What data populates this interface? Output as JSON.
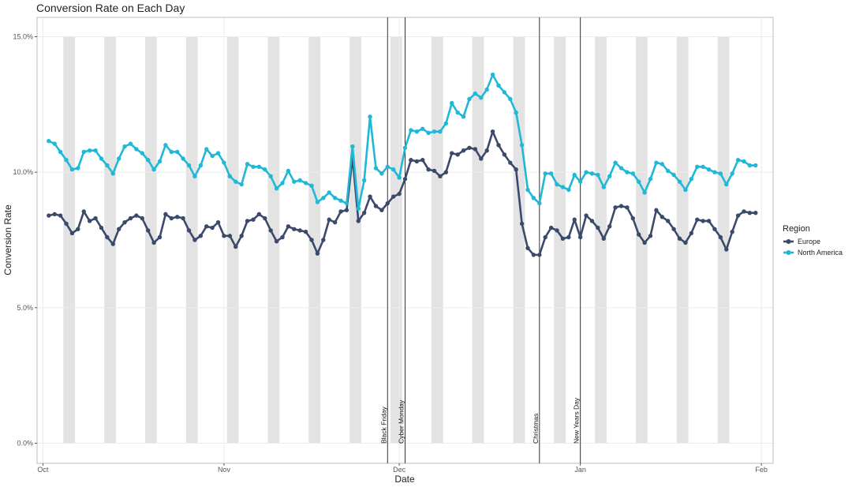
{
  "chart_data": {
    "type": "line",
    "title": "Conversion Rate on Each Day",
    "xlabel": "Date",
    "ylabel": "Conversion Rate",
    "x_start": "2019-10-02",
    "x_range": [
      "2019-09-30",
      "2020-02-03"
    ],
    "ylim": [
      0,
      15.5
    ],
    "y_ticks": [
      0,
      5,
      10,
      15
    ],
    "y_tick_labels": [
      "0.0%",
      "5.0%",
      "10.0%",
      "15.0%"
    ],
    "x_ticks": [
      "2019-10-01",
      "2019-11-01",
      "2019-12-01",
      "2020-01-01",
      "2020-02-01"
    ],
    "x_tick_labels": [
      "Oct",
      "Nov",
      "Dec",
      "Jan",
      "Feb"
    ],
    "grid": true,
    "weekend_shading": {
      "color": "#e3e3e3",
      "start_date": "2019-10-05",
      "days": 2,
      "top_value": 15.0
    },
    "events": [
      {
        "date": "2019-11-29",
        "label": "Black Friday"
      },
      {
        "date": "2019-12-02",
        "label": "Cyber Monday"
      },
      {
        "date": "2019-12-25",
        "label": "Christmas"
      },
      {
        "date": "2020-01-01",
        "label": "New Years Day"
      }
    ],
    "legend": {
      "title": "Region",
      "position": "right"
    },
    "series": [
      {
        "name": "Europe",
        "color": "#3b4a6b",
        "values": [
          8.4,
          8.45,
          8.4,
          8.1,
          7.75,
          7.9,
          8.55,
          8.2,
          8.3,
          7.95,
          7.6,
          7.35,
          7.9,
          8.15,
          8.3,
          8.4,
          8.3,
          7.85,
          7.4,
          7.6,
          8.45,
          8.3,
          8.35,
          8.3,
          7.85,
          7.5,
          7.65,
          8.0,
          7.95,
          8.15,
          7.65,
          7.65,
          7.25,
          7.65,
          8.2,
          8.25,
          8.45,
          8.3,
          7.85,
          7.45,
          7.6,
          8.0,
          7.9,
          7.85,
          7.8,
          7.5,
          7.0,
          7.5,
          8.25,
          8.15,
          8.55,
          8.6,
          10.55,
          8.2,
          8.5,
          9.1,
          8.75,
          8.6,
          8.85,
          9.1,
          9.2,
          9.75,
          10.45,
          10.4,
          10.45,
          10.1,
          10.05,
          9.85,
          10.0,
          10.7,
          10.65,
          10.8,
          10.9,
          10.85,
          10.5,
          10.8,
          11.5,
          11.0,
          10.65,
          10.35,
          10.1,
          8.1,
          7.2,
          6.95,
          6.95,
          7.6,
          7.95,
          7.85,
          7.55,
          7.6,
          8.25,
          7.6,
          8.4,
          8.2,
          7.95,
          7.55,
          8.0,
          8.7,
          8.75,
          8.7,
          8.3,
          7.7,
          7.4,
          7.65,
          8.6,
          8.35,
          8.2,
          7.9,
          7.55,
          7.4,
          7.75,
          8.25,
          8.2,
          8.2,
          7.9,
          7.6,
          7.15,
          7.8,
          8.4,
          8.55,
          8.5,
          8.5
        ]
      },
      {
        "name": "North America",
        "color": "#1fb8d6",
        "values": [
          11.15,
          11.05,
          10.75,
          10.45,
          10.1,
          10.15,
          10.75,
          10.8,
          10.8,
          10.5,
          10.25,
          9.95,
          10.5,
          10.95,
          11.05,
          10.85,
          10.7,
          10.45,
          10.1,
          10.4,
          11.0,
          10.75,
          10.75,
          10.5,
          10.25,
          9.85,
          10.25,
          10.85,
          10.6,
          10.7,
          10.35,
          9.85,
          9.65,
          9.55,
          10.3,
          10.2,
          10.2,
          10.1,
          9.85,
          9.4,
          9.6,
          10.05,
          9.65,
          9.7,
          9.6,
          9.5,
          8.9,
          9.05,
          9.25,
          9.05,
          8.95,
          8.85,
          10.95,
          8.65,
          9.7,
          12.05,
          10.15,
          9.95,
          10.2,
          10.1,
          9.8,
          10.9,
          11.55,
          11.5,
          11.6,
          11.45,
          11.5,
          11.5,
          11.8,
          12.55,
          12.2,
          12.05,
          12.7,
          12.9,
          12.75,
          13.05,
          13.6,
          13.2,
          12.95,
          12.7,
          12.2,
          11.0,
          9.35,
          9.05,
          8.85,
          9.95,
          9.95,
          9.55,
          9.45,
          9.35,
          9.9,
          9.65,
          10.0,
          9.95,
          9.9,
          9.45,
          9.85,
          10.35,
          10.15,
          10.0,
          9.95,
          9.65,
          9.25,
          9.75,
          10.35,
          10.3,
          10.05,
          9.9,
          9.65,
          9.35,
          9.75,
          10.2,
          10.2,
          10.1,
          10.0,
          9.95,
          9.55,
          9.95,
          10.45,
          10.4,
          10.25,
          10.25
        ]
      }
    ]
  }
}
